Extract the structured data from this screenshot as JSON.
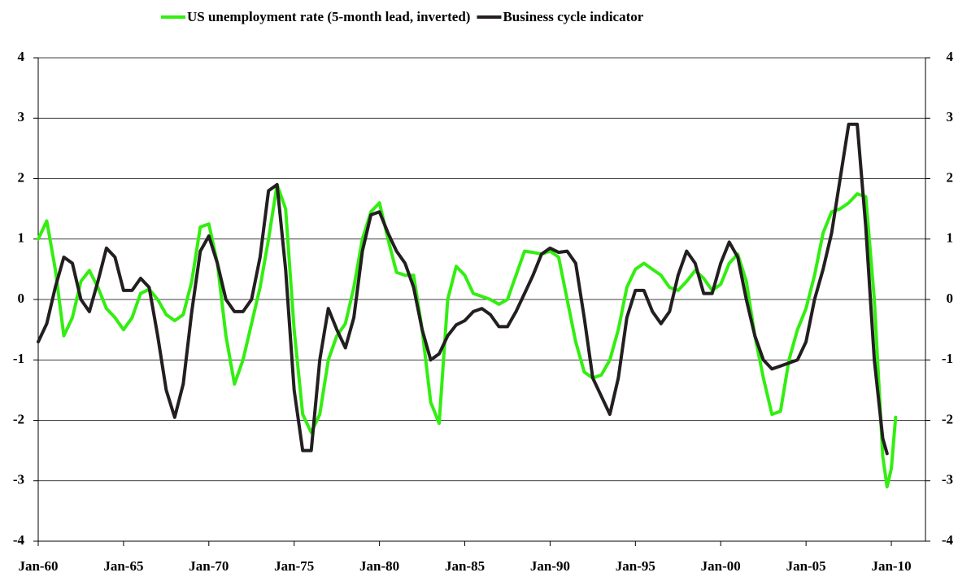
{
  "chart_data": {
    "type": "line",
    "x": [
      "Jan-60",
      "Jul-60",
      "Jan-61",
      "Jul-61",
      "Jan-62",
      "Jul-62",
      "Jan-63",
      "Jul-63",
      "Jan-64",
      "Jul-64",
      "Jan-65",
      "Jul-65",
      "Jan-66",
      "Jul-66",
      "Jan-67",
      "Jul-67",
      "Jan-68",
      "Jul-68",
      "Jan-69",
      "Jul-69",
      "Jan-70",
      "Jul-70",
      "Jan-71",
      "Jul-71",
      "Jan-72",
      "Jul-72",
      "Jan-73",
      "Jul-73",
      "Jan-74",
      "Jul-74",
      "Jan-75",
      "Jul-75",
      "Jan-76",
      "Jul-76",
      "Jan-77",
      "Jul-77",
      "Jan-78",
      "Jul-78",
      "Jan-79",
      "Jul-79",
      "Jan-80",
      "Jul-80",
      "Jan-81",
      "Jul-81",
      "Jan-82",
      "Jul-82",
      "Jan-83",
      "Jul-83",
      "Jan-84",
      "Jul-84",
      "Jan-85",
      "Jul-85",
      "Jan-86",
      "Jul-86",
      "Jan-87",
      "Jul-87",
      "Jan-88",
      "Jul-88",
      "Jan-89",
      "Jul-89",
      "Jan-90",
      "Jul-90",
      "Jan-91",
      "Jul-91",
      "Jan-92",
      "Jul-92",
      "Jan-93",
      "Jul-93",
      "Jan-94",
      "Jul-94",
      "Jan-95",
      "Jul-95",
      "Jan-96",
      "Jul-96",
      "Jan-97",
      "Jul-97",
      "Jan-98",
      "Jul-98",
      "Jan-99",
      "Jul-99",
      "Jan-00",
      "Jul-00",
      "Jan-01",
      "Jul-01",
      "Jan-02",
      "Jul-02",
      "Jan-03",
      "Jul-03",
      "Jan-04",
      "Jul-04",
      "Jan-05",
      "Jul-05",
      "Jan-06",
      "Jul-06",
      "Jan-07",
      "Jul-07",
      "Jan-08",
      "Jul-08",
      "Jan-09",
      "Jul-09",
      "Oct-09",
      "Jan-10",
      "Apr-10"
    ],
    "series": [
      {
        "name": "US unemployment rate (5-month lead, inverted)",
        "color": "#33ee11",
        "values": [
          1.0,
          1.3,
          0.5,
          -0.6,
          -0.3,
          0.3,
          0.48,
          0.2,
          -0.15,
          -0.3,
          -0.5,
          -0.3,
          0.1,
          0.17,
          0.0,
          -0.25,
          -0.35,
          -0.25,
          0.3,
          1.2,
          1.25,
          0.6,
          -0.6,
          -1.4,
          -1.0,
          -0.4,
          0.2,
          1.0,
          1.9,
          1.5,
          -0.5,
          -1.9,
          -2.2,
          -1.9,
          -1.0,
          -0.6,
          -0.4,
          0.2,
          1.0,
          1.45,
          1.6,
          1.0,
          0.45,
          0.4,
          0.4,
          -0.5,
          -1.7,
          -2.05,
          0.0,
          0.55,
          0.4,
          0.1,
          0.05,
          0.0,
          -0.08,
          0.0,
          0.4,
          0.8,
          0.78,
          0.75,
          0.8,
          0.7,
          0.0,
          -0.7,
          -1.2,
          -1.3,
          -1.25,
          -1.0,
          -0.5,
          0.2,
          0.5,
          0.6,
          0.5,
          0.4,
          0.2,
          0.15,
          0.3,
          0.48,
          0.35,
          0.15,
          0.25,
          0.6,
          0.75,
          0.3,
          -0.6,
          -1.3,
          -1.9,
          -1.85,
          -1.0,
          -0.5,
          -0.15,
          0.4,
          1.1,
          1.45,
          1.5,
          1.6,
          1.75,
          1.7,
          0.0,
          -2.6,
          -3.1,
          -2.8,
          -1.95
        ]
      },
      {
        "name": "Business cycle indicator",
        "color": "#231f20",
        "values": [
          -0.7,
          -0.4,
          0.2,
          0.7,
          0.6,
          0.0,
          -0.2,
          0.3,
          0.85,
          0.7,
          0.15,
          0.15,
          0.35,
          0.2,
          -0.6,
          -1.5,
          -1.95,
          -1.4,
          -0.2,
          0.8,
          1.05,
          0.6,
          0.0,
          -0.2,
          -0.2,
          0.0,
          0.7,
          1.8,
          1.9,
          0.5,
          -1.5,
          -2.5,
          -2.5,
          -1.0,
          -0.15,
          -0.5,
          -0.8,
          -0.3,
          0.8,
          1.4,
          1.45,
          1.1,
          0.8,
          0.6,
          0.2,
          -0.5,
          -1.0,
          -0.9,
          -0.6,
          -0.42,
          -0.35,
          -0.2,
          -0.15,
          -0.25,
          -0.45,
          -0.45,
          -0.2,
          0.1,
          0.4,
          0.75,
          0.85,
          0.78,
          0.8,
          0.6,
          -0.3,
          -1.3,
          -1.6,
          -1.9,
          -1.3,
          -0.3,
          0.15,
          0.15,
          -0.2,
          -0.4,
          -0.2,
          0.4,
          0.8,
          0.6,
          0.1,
          0.1,
          0.6,
          0.95,
          0.7,
          0.0,
          -0.6,
          -1.0,
          -1.15,
          -1.1,
          -1.05,
          -1.0,
          -0.7,
          0.0,
          0.5,
          1.1,
          2.0,
          2.9,
          2.9,
          1.2,
          -1.0,
          -2.3,
          -2.55,
          null,
          null
        ]
      }
    ],
    "xlim": [
      "Jan-60",
      "Jan-12"
    ],
    "xticks": [
      "Jan-60",
      "Jan-65",
      "Jan-70",
      "Jan-75",
      "Jan-80",
      "Jan-85",
      "Jan-90",
      "Jan-95",
      "Jan-00",
      "Jan-05",
      "Jan-10"
    ],
    "ylim": [
      -4,
      4
    ],
    "yticks": [
      -4,
      -3,
      -2,
      -1,
      0,
      1,
      2,
      3,
      4
    ],
    "y2lim": [
      -4,
      4
    ],
    "y2ticks": [
      -4,
      -3,
      -2,
      -1,
      0,
      1,
      2,
      3,
      4
    ],
    "grid": true,
    "legend": "top"
  }
}
